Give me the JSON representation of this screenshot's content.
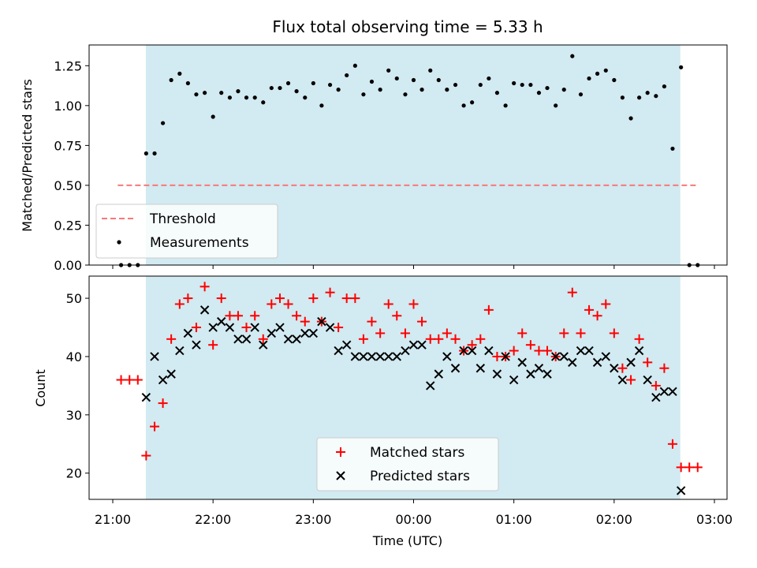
{
  "chart_data": [
    {
      "type": "scatter",
      "title": "Flux total observing time = 5.33 h",
      "xlabel": "",
      "ylabel": "Matched/Predicted stars",
      "ylim": [
        0,
        1.38
      ],
      "yticks": [
        "0.00",
        "0.25",
        "0.50",
        "0.75",
        "1.00",
        "1.25"
      ],
      "shaded_interval_hours": [
        21.33,
        26.66
      ],
      "threshold": {
        "name": "Threshold",
        "value": 0.5,
        "x_range": [
          21.05,
          26.84
        ],
        "color": "#f87878"
      },
      "series": [
        {
          "name": "Measurements",
          "color": "#000000",
          "x": [
            21.083,
            21.167,
            21.25,
            21.333,
            21.417,
            21.5,
            21.583,
            21.667,
            21.75,
            21.833,
            21.917,
            22.0,
            22.083,
            22.167,
            22.25,
            22.333,
            22.417,
            22.5,
            22.583,
            22.667,
            22.75,
            22.833,
            22.917,
            23.0,
            23.083,
            23.167,
            23.25,
            23.333,
            23.417,
            23.5,
            23.583,
            23.667,
            23.75,
            23.833,
            23.917,
            24.0,
            24.083,
            24.167,
            24.25,
            24.333,
            24.417,
            24.5,
            24.583,
            24.667,
            24.75,
            24.833,
            24.917,
            25.0,
            25.083,
            25.167,
            25.25,
            25.333,
            25.417,
            25.5,
            25.583,
            25.667,
            25.75,
            25.833,
            25.917,
            26.0,
            26.083,
            26.167,
            26.25,
            26.333,
            26.417,
            26.5,
            26.583,
            26.667,
            26.75,
            26.833
          ],
          "y": [
            0,
            0,
            0,
            0.7,
            0.7,
            0.89,
            1.16,
            1.2,
            1.14,
            1.07,
            1.08,
            0.93,
            1.08,
            1.05,
            1.09,
            1.05,
            1.05,
            1.02,
            1.11,
            1.11,
            1.14,
            1.09,
            1.05,
            1.14,
            1.0,
            1.13,
            1.1,
            1.19,
            1.25,
            1.07,
            1.15,
            1.1,
            1.22,
            1.17,
            1.07,
            1.16,
            1.1,
            1.22,
            1.16,
            1.1,
            1.13,
            1.0,
            1.02,
            1.13,
            1.17,
            1.08,
            1.0,
            1.14,
            1.13,
            1.13,
            1.08,
            1.11,
            1.0,
            1.1,
            1.31,
            1.07,
            1.17,
            1.2,
            1.22,
            1.16,
            1.05,
            0.92,
            1.05,
            1.08,
            1.06,
            1.12,
            0.73,
            1.24,
            0,
            0
          ]
        }
      ]
    },
    {
      "type": "scatter",
      "title": "",
      "xlabel": "Time (UTC)",
      "ylabel": "Count",
      "ylim": [
        15.5,
        53.8
      ],
      "yticks": [
        "20",
        "30",
        "40",
        "50"
      ],
      "xticks": [
        "21:00",
        "22:00",
        "23:00",
        "00:00",
        "01:00",
        "02:00",
        "03:00"
      ],
      "shaded_interval_hours": [
        21.33,
        26.66
      ],
      "series": [
        {
          "name": "Matched stars",
          "color": "#ff0000",
          "marker": "plus",
          "x": [
            21.083,
            21.167,
            21.25,
            21.333,
            21.417,
            21.5,
            21.583,
            21.667,
            21.75,
            21.833,
            21.917,
            22.0,
            22.083,
            22.167,
            22.25,
            22.333,
            22.417,
            22.5,
            22.583,
            22.667,
            22.75,
            22.833,
            22.917,
            23.0,
            23.083,
            23.167,
            23.25,
            23.333,
            23.417,
            23.5,
            23.583,
            23.667,
            23.75,
            23.833,
            23.917,
            24.0,
            24.083,
            24.167,
            24.25,
            24.333,
            24.417,
            24.5,
            24.583,
            24.667,
            24.75,
            24.833,
            24.917,
            25.0,
            25.083,
            25.167,
            25.25,
            25.333,
            25.417,
            25.5,
            25.583,
            25.667,
            25.75,
            25.833,
            25.917,
            26.0,
            26.083,
            26.167,
            26.25,
            26.333,
            26.417,
            26.5,
            26.583,
            26.667,
            26.75,
            26.833
          ],
          "y": [
            36,
            36,
            36,
            23,
            28,
            32,
            43,
            49,
            50,
            45,
            52,
            42,
            50,
            47,
            47,
            45,
            47,
            43,
            49,
            50,
            49,
            47,
            46,
            50,
            46,
            51,
            45,
            50,
            50,
            43,
            46,
            44,
            49,
            47,
            44,
            49,
            46,
            43,
            43,
            44,
            43,
            41,
            42,
            43,
            48,
            40,
            40,
            41,
            44,
            42,
            41,
            41,
            40,
            44,
            51,
            44,
            48,
            47,
            49,
            44,
            38,
            36,
            43,
            39,
            35,
            38,
            25,
            21,
            21,
            21
          ]
        },
        {
          "name": "Predicted stars",
          "color": "#000000",
          "marker": "x",
          "x": [
            21.333,
            21.417,
            21.5,
            21.583,
            21.667,
            21.75,
            21.833,
            21.917,
            22.0,
            22.083,
            22.167,
            22.25,
            22.333,
            22.417,
            22.5,
            22.583,
            22.667,
            22.75,
            22.833,
            22.917,
            23.0,
            23.083,
            23.167,
            23.25,
            23.333,
            23.417,
            23.5,
            23.583,
            23.667,
            23.75,
            23.833,
            23.917,
            24.0,
            24.083,
            24.167,
            24.25,
            24.333,
            24.417,
            24.5,
            24.583,
            24.667,
            24.75,
            24.833,
            24.917,
            25.0,
            25.083,
            25.167,
            25.25,
            25.333,
            25.417,
            25.5,
            25.583,
            25.667,
            25.75,
            25.833,
            25.917,
            26.0,
            26.083,
            26.167,
            26.25,
            26.333,
            26.417,
            26.5,
            26.583,
            26.667
          ],
          "y": [
            33,
            40,
            36,
            37,
            41,
            44,
            42,
            48,
            45,
            46,
            45,
            43,
            43,
            45,
            42,
            44,
            45,
            43,
            43,
            44,
            44,
            46,
            45,
            41,
            42,
            40,
            40,
            40,
            40,
            40,
            40,
            41,
            42,
            42,
            35,
            37,
            40,
            38,
            41,
            41,
            38,
            41,
            37,
            40,
            36,
            39,
            37,
            38,
            37,
            40,
            40,
            39,
            41,
            41,
            39,
            40,
            38,
            36,
            39,
            41,
            36,
            33,
            34,
            34,
            17
          ]
        }
      ]
    }
  ]
}
